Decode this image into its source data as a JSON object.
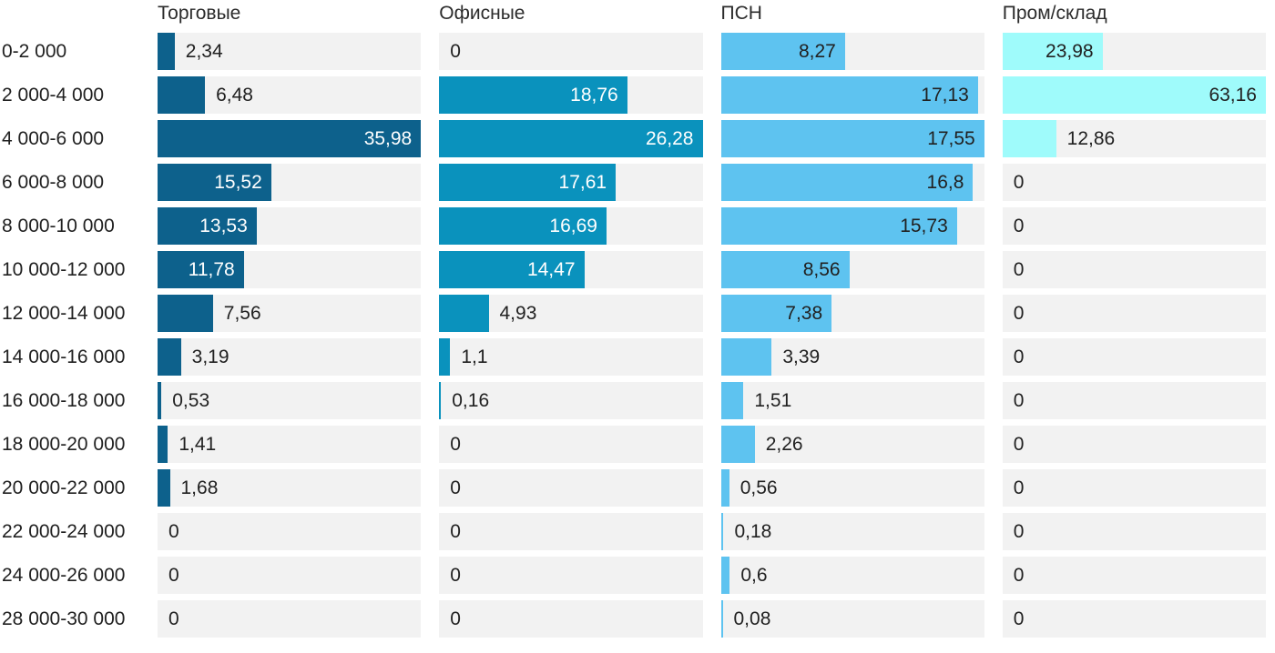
{
  "chart_data": {
    "type": "bar",
    "orientation": "horizontal",
    "title": "",
    "xlabel": "",
    "ylabel": "",
    "grid": false,
    "legend_position": "column-headers",
    "scaling": "each column scaled independently; column max fills full track width",
    "track_color": "#f2f2f2",
    "text_color": "#212121",
    "categories": [
      "0-2 000",
      "2 000-4 000",
      "4 000-6 000",
      "6 000-8 000",
      "8 000-10 000",
      "10 000-12 000",
      "12 000-14 000",
      "14 000-16 000",
      "16 000-18 000",
      "18 000-20 000",
      "20 000-22 000",
      "22 000-24 000",
      "24 000-26 000",
      "28 000-30 000"
    ],
    "series": [
      {
        "name": "Торговые",
        "color": "#0d618c",
        "inside_label_color": "#ffffff",
        "values": [
          2.34,
          6.48,
          35.98,
          15.52,
          13.53,
          11.78,
          7.56,
          3.19,
          0.53,
          1.41,
          1.68,
          0,
          0,
          0
        ],
        "labels": [
          "2,34",
          "6,48",
          "35,98",
          "15,52",
          "13,53",
          "11,78",
          "7,56",
          "3,19",
          "0,53",
          "1,41",
          "1,68",
          "0",
          "0",
          "0"
        ]
      },
      {
        "name": "Офисные",
        "color": "#0a92bd",
        "inside_label_color": "#ffffff",
        "values": [
          0,
          18.76,
          26.28,
          17.61,
          16.69,
          14.47,
          4.93,
          1.1,
          0.16,
          0,
          0,
          0,
          0,
          0
        ],
        "labels": [
          "0",
          "18,76",
          "26,28",
          "17,61",
          "16,69",
          "14,47",
          "4,93",
          "1,1",
          "0,16",
          "0",
          "0",
          "0",
          "0",
          "0"
        ]
      },
      {
        "name": "ПСН",
        "color": "#5ec3f0",
        "inside_label_color": "#212121",
        "values": [
          8.27,
          17.13,
          17.55,
          16.8,
          15.73,
          8.56,
          7.38,
          3.39,
          1.51,
          2.26,
          0.56,
          0.18,
          0.6,
          0.08
        ],
        "labels": [
          "8,27",
          "17,13",
          "17,55",
          "16,8",
          "15,73",
          "8,56",
          "7,38",
          "3,39",
          "1,51",
          "2,26",
          "0,56",
          "0,18",
          "0,6",
          "0,08"
        ]
      },
      {
        "name": "Пром/склад",
        "color": "#9ffbfb",
        "inside_label_color": "#212121",
        "values": [
          23.98,
          63.16,
          12.86,
          0,
          0,
          0,
          0,
          0,
          0,
          0,
          0,
          0,
          0,
          0
        ],
        "labels": [
          "23,98",
          "63,16",
          "12,86",
          "0",
          "0",
          "0",
          "0",
          "0",
          "0",
          "0",
          "0",
          "0",
          "0",
          "0"
        ]
      }
    ]
  }
}
